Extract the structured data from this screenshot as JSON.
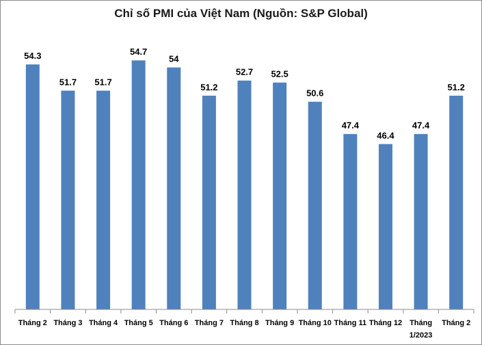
{
  "chart_data": {
    "type": "bar",
    "title": "Chỉ số PMI của Việt Nam (Nguồn: S&P Global)",
    "categories": [
      "Tháng 2",
      "Tháng 3",
      "Tháng 4",
      "Tháng 5",
      "Tháng 6",
      "Tháng 7",
      "Tháng 8",
      "Tháng 9",
      "Tháng 10",
      "Tháng 11",
      "Tháng 12",
      "Tháng 1/2023",
      "Tháng 2"
    ],
    "values": [
      54.3,
      51.7,
      51.7,
      54.7,
      54,
      51.2,
      52.7,
      52.5,
      50.6,
      47.4,
      46.4,
      47.4,
      51.2
    ],
    "value_labels": [
      "54.3",
      "51.7",
      "51.7",
      "54.7",
      "54",
      "51.2",
      "52.7",
      "52.5",
      "50.6",
      "47.4",
      "46.4",
      "47.4",
      "51.2"
    ],
    "ylim": [
      30,
      57.5
    ],
    "grid": false,
    "legend": "none",
    "bar_color": "#4f81bd"
  }
}
